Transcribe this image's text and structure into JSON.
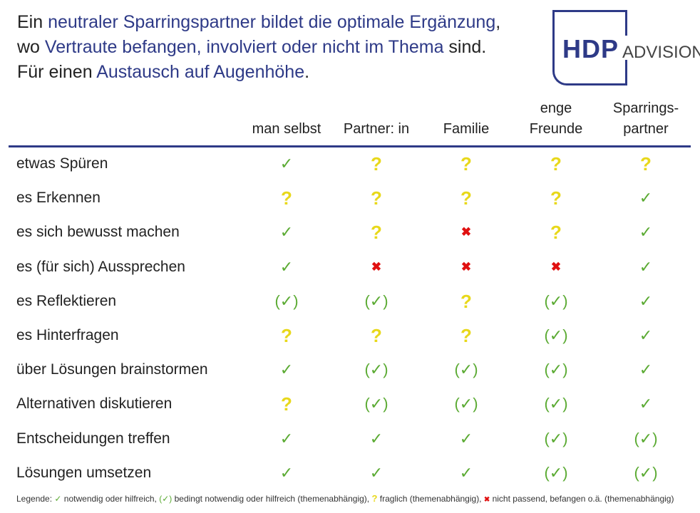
{
  "headline": {
    "l1a": "Ein ",
    "l1b": "neutraler Sparringspartner bildet die optimale Ergänzung",
    ",": "",
    "l1c": ",",
    "l2a": "wo ",
    "l2b": "Vertraute befangen, involviert oder nicht im Thema",
    "l2c": " sind.",
    "l3a": "Für einen ",
    "l3b": "Austausch auf Augenhöhe",
    "l3c": "."
  },
  "logo": {
    "hdp": "HDP",
    "advision": "ADVISION"
  },
  "columns": [
    "man selbst",
    "Partner: in",
    "Familie",
    "enge Freunde",
    "Sparrings-partner"
  ],
  "column_lines": [
    [
      "man selbst"
    ],
    [
      "Partner: in"
    ],
    [
      "Familie"
    ],
    [
      "enge",
      "Freunde"
    ],
    [
      "Sparrings-",
      "partner"
    ]
  ],
  "symbols": {
    "c": "✓",
    "pc": "(✓)",
    "q": "?",
    "x": "✖"
  },
  "colors": {
    "blue": "#2e3a87",
    "green": "#5aaa32",
    "yellow": "#e8d81a",
    "red": "#e01010"
  },
  "rows": [
    {
      "label": "etwas Spüren",
      "values": [
        "c",
        "q",
        "q",
        "q",
        "q"
      ]
    },
    {
      "label": "es Erkennen",
      "values": [
        "q",
        "q",
        "q",
        "q",
        "c"
      ]
    },
    {
      "label": "es sich bewusst machen",
      "values": [
        "c",
        "q",
        "x",
        "q",
        "c"
      ]
    },
    {
      "label": "es (für sich) Aussprechen",
      "values": [
        "c",
        "x",
        "x",
        "x",
        "c"
      ]
    },
    {
      "label": "es Reflektieren",
      "values": [
        "pc",
        "pc",
        "q",
        "pc",
        "c"
      ]
    },
    {
      "label": "es Hinterfragen",
      "values": [
        "q",
        "q",
        "q",
        "pc",
        "c"
      ]
    },
    {
      "label": "über Lösungen brainstormen",
      "values": [
        "c",
        "pc",
        "pc",
        "pc",
        "c"
      ]
    },
    {
      "label": "Alternativen diskutieren",
      "values": [
        "q",
        "pc",
        "pc",
        "pc",
        "c"
      ]
    },
    {
      "label": "Entscheidungen treffen",
      "values": [
        "c",
        "c",
        "c",
        "pc",
        "pc"
      ]
    },
    {
      "label": "Lösungen umsetzen",
      "values": [
        "c",
        "c",
        "c",
        "pc",
        "pc"
      ]
    }
  ],
  "legend": {
    "prefix": "Legende: ",
    "c": "notwendig oder hilfreich, ",
    "pc": "bedingt notwendig oder hilfreich (themenabhängig), ",
    "q": "fraglich (themenabhängig), ",
    "x": "nicht passend, befangen o.ä. (themenabhängig)"
  }
}
